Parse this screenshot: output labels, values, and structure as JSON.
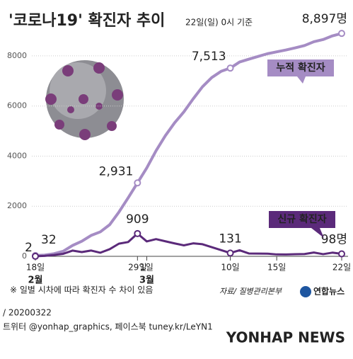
{
  "chart_data": {
    "type": "line",
    "title": "'코로나19' 확진자 추이",
    "subtitle": "22일(일) 0시 기준",
    "categories": [
      "18일",
      null,
      null,
      null,
      null,
      null,
      null,
      null,
      null,
      null,
      null,
      "29일",
      "1일",
      null,
      null,
      null,
      null,
      null,
      null,
      null,
      null,
      "10일",
      null,
      null,
      null,
      null,
      "15일",
      null,
      null,
      null,
      null,
      null,
      null,
      "22일"
    ],
    "months": [
      "2월",
      "3월"
    ],
    "series": [
      {
        "name": "누적 확진자",
        "color": "#a58cc4",
        "values": [
          32,
          51,
          104,
          204,
          433,
          602,
          833,
          977,
          1261,
          1766,
          2337,
          2931,
          3526,
          4212,
          4812,
          5328,
          5766,
          6284,
          6767,
          7134,
          7382,
          7513,
          7755,
          7869,
          7979,
          8086,
          8162,
          8236,
          8320,
          8413,
          8565,
          8652,
          8799,
          8897
        ],
        "value_labels": [
          "32",
          null,
          null,
          null,
          null,
          null,
          null,
          null,
          null,
          null,
          null,
          "2,931",
          null,
          null,
          null,
          null,
          null,
          null,
          null,
          null,
          null,
          "7,513",
          null,
          null,
          null,
          null,
          null,
          null,
          null,
          null,
          null,
          null,
          null,
          "8,897명"
        ]
      },
      {
        "name": "신규 확진자",
        "color": "#5b2a7a",
        "values": [
          2,
          19,
          53,
          100,
          229,
          169,
          231,
          144,
          284,
          505,
          571,
          909,
          595,
          686,
          600,
          516,
          438,
          518,
          483,
          367,
          248,
          131,
          242,
          114,
          110,
          107,
          76,
          74,
          84,
          93,
          152,
          87,
          147,
          98
        ],
        "value_labels": [
          "2",
          null,
          null,
          null,
          null,
          null,
          null,
          null,
          null,
          null,
          null,
          "909",
          null,
          null,
          null,
          null,
          null,
          null,
          null,
          null,
          null,
          "131",
          null,
          null,
          null,
          null,
          null,
          null,
          null,
          null,
          null,
          null,
          null,
          "98명"
        ]
      }
    ],
    "ylim": [
      0,
      9100
    ],
    "yticks": [
      0,
      2000,
      4000,
      6000,
      8000
    ],
    "grid": true,
    "note": "※ 일별 시차에 따라 확진자 수 차이 있음",
    "source": "자료/ 질병관리본부",
    "brand": "연합뉴스",
    "date": "/ 20200322",
    "social": "트위터 @yonhap_graphics, 페이스북 tuney.kr/LeYN1",
    "watermark": "YONHAP NEWS"
  }
}
